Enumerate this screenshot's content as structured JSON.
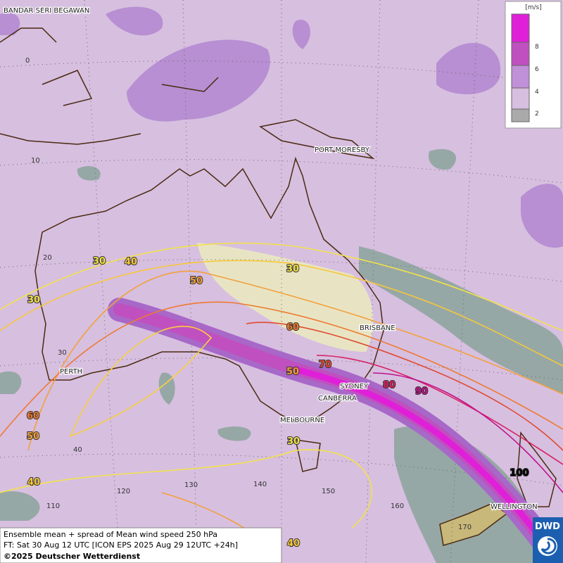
{
  "header": {
    "unit": "[m/s]"
  },
  "legend": {
    "ticks": [
      8,
      6,
      4,
      2
    ]
  },
  "places": [
    "BANDAR SERI BEGAWAN",
    "PORT MORESBY",
    "BRISBANE",
    "PERTH",
    "SYDNEY",
    "CANBERRA",
    "MELBOURNE",
    "WELLINGTON"
  ],
  "grid_labels": [
    0,
    10,
    20,
    30,
    40,
    110,
    120,
    130,
    140,
    150,
    160,
    170
  ],
  "contour_labels": [
    30,
    40,
    30,
    50,
    30,
    60,
    70,
    50,
    80,
    90,
    60,
    50,
    30,
    40,
    100,
    40
  ],
  "caption": {
    "title": "Ensemble mean + spread of Mean wind speed 250 hPa",
    "forecast": "FT: Sat 30 Aug 12 UTC [ICON EPS 2025 Aug 29 12UTC +24h]",
    "copyright": "©2025 Deutscher Wetterdienst"
  },
  "logo": "DWD"
}
